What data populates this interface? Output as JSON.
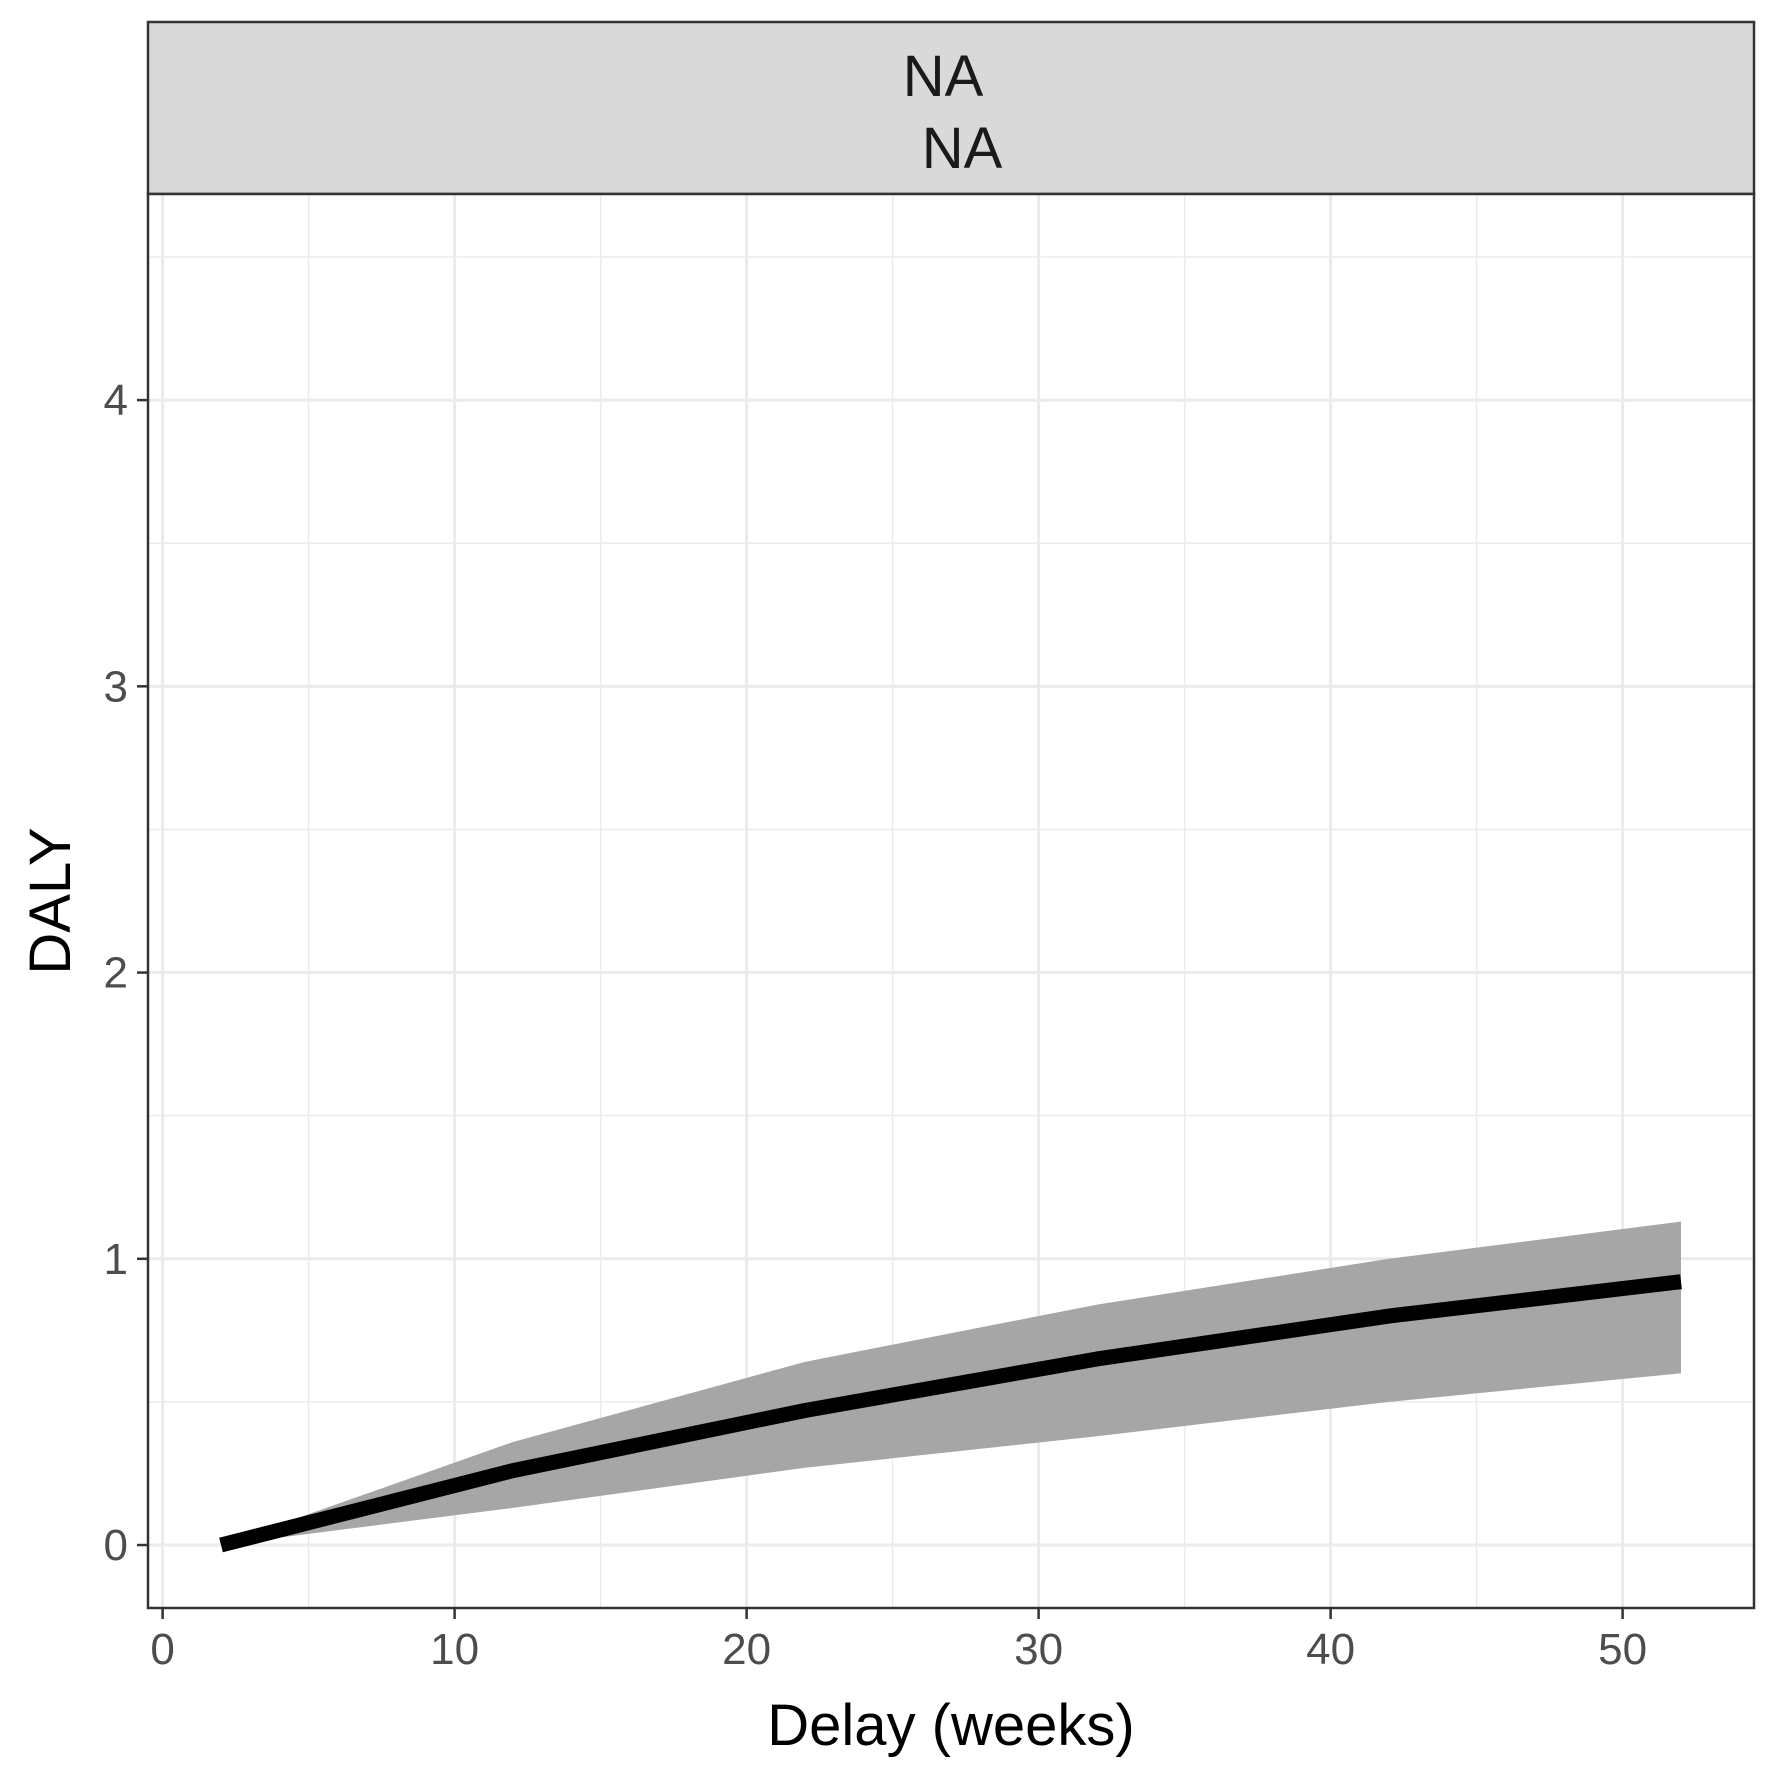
{
  "chart_data": {
    "type": "line",
    "facet_strip": [
      "NA",
      "NA"
    ],
    "xlabel": "Delay (weeks)",
    "ylabel": "DALY",
    "xlim": [
      -0.5,
      54.5
    ],
    "ylim": [
      -0.22,
      4.72
    ],
    "x_ticks": [
      0,
      10,
      20,
      30,
      40,
      50
    ],
    "y_ticks": [
      0,
      1,
      2,
      3,
      4
    ],
    "grid": true,
    "series": [
      {
        "x": [
          2,
          12,
          22,
          32,
          42,
          52
        ],
        "values": [
          0.0,
          0.26,
          0.47,
          0.65,
          0.8,
          0.92
        ],
        "lower": [
          0.0,
          0.13,
          0.27,
          0.38,
          0.5,
          0.6
        ],
        "upper": [
          0.0,
          0.36,
          0.64,
          0.84,
          1.0,
          1.13
        ]
      }
    ],
    "colors": {
      "line": "#000000",
      "ribbon": "#a6a6a6",
      "strip": "#d9d9d9",
      "grid": "#ebebeb"
    }
  }
}
